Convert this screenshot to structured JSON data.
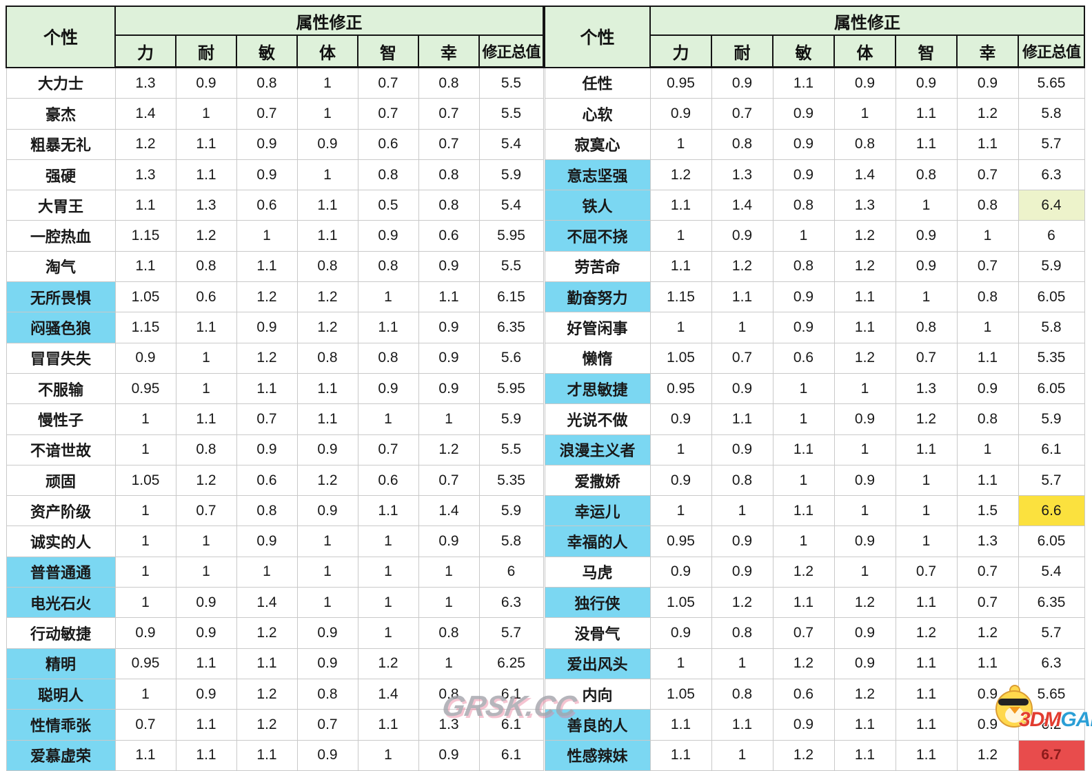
{
  "header": {
    "personality_label": "个性",
    "modifier_label": "属性修正",
    "columns": [
      "力",
      "耐",
      "敏",
      "体",
      "智",
      "幸"
    ],
    "total_label": "修正总值"
  },
  "chart_data": [
    {
      "type": "table",
      "title": "属性修正 (左表)",
      "rows": [
        {
          "name": "大力士",
          "highlight": false,
          "values": [
            "1.3",
            "0.9",
            "0.8",
            "1",
            "0.7",
            "0.8"
          ],
          "total": "5.5",
          "total_highlight": ""
        },
        {
          "name": "豪杰",
          "highlight": false,
          "values": [
            "1.4",
            "1",
            "0.7",
            "1",
            "0.7",
            "0.7"
          ],
          "total": "5.5",
          "total_highlight": ""
        },
        {
          "name": "粗暴无礼",
          "highlight": false,
          "values": [
            "1.2",
            "1.1",
            "0.9",
            "0.9",
            "0.6",
            "0.7"
          ],
          "total": "5.4",
          "total_highlight": ""
        },
        {
          "name": "强硬",
          "highlight": false,
          "values": [
            "1.3",
            "1.1",
            "0.9",
            "1",
            "0.8",
            "0.8"
          ],
          "total": "5.9",
          "total_highlight": ""
        },
        {
          "name": "大胃王",
          "highlight": false,
          "values": [
            "1.1",
            "1.3",
            "0.6",
            "1.1",
            "0.5",
            "0.8"
          ],
          "total": "5.4",
          "total_highlight": ""
        },
        {
          "name": "一腔热血",
          "highlight": false,
          "values": [
            "1.15",
            "1.2",
            "1",
            "1.1",
            "0.9",
            "0.6"
          ],
          "total": "5.95",
          "total_highlight": ""
        },
        {
          "name": "淘气",
          "highlight": false,
          "values": [
            "1.1",
            "0.8",
            "1.1",
            "0.8",
            "0.8",
            "0.9"
          ],
          "total": "5.5",
          "total_highlight": ""
        },
        {
          "name": "无所畏惧",
          "highlight": true,
          "values": [
            "1.05",
            "0.6",
            "1.2",
            "1.2",
            "1",
            "1.1"
          ],
          "total": "6.15",
          "total_highlight": ""
        },
        {
          "name": "闷骚色狼",
          "highlight": true,
          "values": [
            "1.15",
            "1.1",
            "0.9",
            "1.2",
            "1.1",
            "0.9"
          ],
          "total": "6.35",
          "total_highlight": ""
        },
        {
          "name": "冒冒失失",
          "highlight": false,
          "values": [
            "0.9",
            "1",
            "1.2",
            "0.8",
            "0.8",
            "0.9"
          ],
          "total": "5.6",
          "total_highlight": ""
        },
        {
          "name": "不服输",
          "highlight": false,
          "values": [
            "0.95",
            "1",
            "1.1",
            "1.1",
            "0.9",
            "0.9"
          ],
          "total": "5.95",
          "total_highlight": ""
        },
        {
          "name": "慢性子",
          "highlight": false,
          "values": [
            "1",
            "1.1",
            "0.7",
            "1.1",
            "1",
            "1"
          ],
          "total": "5.9",
          "total_highlight": ""
        },
        {
          "name": "不谙世故",
          "highlight": false,
          "values": [
            "1",
            "0.8",
            "0.9",
            "0.9",
            "0.7",
            "1.2"
          ],
          "total": "5.5",
          "total_highlight": ""
        },
        {
          "name": "顽固",
          "highlight": false,
          "values": [
            "1.05",
            "1.2",
            "0.6",
            "1.2",
            "0.6",
            "0.7"
          ],
          "total": "5.35",
          "total_highlight": ""
        },
        {
          "name": "资产阶级",
          "highlight": false,
          "values": [
            "1",
            "0.7",
            "0.8",
            "0.9",
            "1.1",
            "1.4"
          ],
          "total": "5.9",
          "total_highlight": ""
        },
        {
          "name": "诚实的人",
          "highlight": false,
          "values": [
            "1",
            "1",
            "0.9",
            "1",
            "1",
            "0.9"
          ],
          "total": "5.8",
          "total_highlight": ""
        },
        {
          "name": "普普通通",
          "highlight": true,
          "values": [
            "1",
            "1",
            "1",
            "1",
            "1",
            "1"
          ],
          "total": "6",
          "total_highlight": ""
        },
        {
          "name": "电光石火",
          "highlight": true,
          "values": [
            "1",
            "0.9",
            "1.4",
            "1",
            "1",
            "1"
          ],
          "total": "6.3",
          "total_highlight": ""
        },
        {
          "name": "行动敏捷",
          "highlight": false,
          "values": [
            "0.9",
            "0.9",
            "1.2",
            "0.9",
            "1",
            "0.8"
          ],
          "total": "5.7",
          "total_highlight": ""
        },
        {
          "name": "精明",
          "highlight": true,
          "values": [
            "0.95",
            "1.1",
            "1.1",
            "0.9",
            "1.2",
            "1"
          ],
          "total": "6.25",
          "total_highlight": ""
        },
        {
          "name": "聪明人",
          "highlight": true,
          "values": [
            "1",
            "0.9",
            "1.2",
            "0.8",
            "1.4",
            "0.8"
          ],
          "total": "6.1",
          "total_highlight": ""
        },
        {
          "name": "性情乖张",
          "highlight": true,
          "values": [
            "0.7",
            "1.1",
            "1.2",
            "0.7",
            "1.1",
            "1.3"
          ],
          "total": "6.1",
          "total_highlight": ""
        },
        {
          "name": "爱慕虚荣",
          "highlight": true,
          "values": [
            "1.1",
            "1.1",
            "1.1",
            "0.9",
            "1",
            "0.9"
          ],
          "total": "6.1",
          "total_highlight": ""
        }
      ]
    },
    {
      "type": "table",
      "title": "属性修正 (右表)",
      "rows": [
        {
          "name": "任性",
          "highlight": false,
          "values": [
            "0.95",
            "0.9",
            "1.1",
            "0.9",
            "0.9",
            "0.9"
          ],
          "total": "5.65",
          "total_highlight": ""
        },
        {
          "name": "心软",
          "highlight": false,
          "values": [
            "0.9",
            "0.7",
            "0.9",
            "1",
            "1.1",
            "1.2"
          ],
          "total": "5.8",
          "total_highlight": ""
        },
        {
          "name": "寂寞心",
          "highlight": false,
          "values": [
            "1",
            "0.8",
            "0.9",
            "0.8",
            "1.1",
            "1.1"
          ],
          "total": "5.7",
          "total_highlight": ""
        },
        {
          "name": "意志坚强",
          "highlight": true,
          "values": [
            "1.2",
            "1.3",
            "0.9",
            "1.4",
            "0.8",
            "0.7"
          ],
          "total": "6.3",
          "total_highlight": ""
        },
        {
          "name": "铁人",
          "highlight": true,
          "values": [
            "1.1",
            "1.4",
            "0.8",
            "1.3",
            "1",
            "0.8"
          ],
          "total": "6.4",
          "total_highlight": "lightgreen"
        },
        {
          "name": "不屈不挠",
          "highlight": true,
          "values": [
            "1",
            "0.9",
            "1",
            "1.2",
            "0.9",
            "1"
          ],
          "total": "6",
          "total_highlight": ""
        },
        {
          "name": "劳苦命",
          "highlight": false,
          "values": [
            "1.1",
            "1.2",
            "0.8",
            "1.2",
            "0.9",
            "0.7"
          ],
          "total": "5.9",
          "total_highlight": ""
        },
        {
          "name": "勤奋努力",
          "highlight": true,
          "values": [
            "1.15",
            "1.1",
            "0.9",
            "1.1",
            "1",
            "0.8"
          ],
          "total": "6.05",
          "total_highlight": ""
        },
        {
          "name": "好管闲事",
          "highlight": false,
          "values": [
            "1",
            "1",
            "0.9",
            "1.1",
            "0.8",
            "1"
          ],
          "total": "5.8",
          "total_highlight": ""
        },
        {
          "name": "懒惰",
          "highlight": false,
          "values": [
            "1.05",
            "0.7",
            "0.6",
            "1.2",
            "0.7",
            "1.1"
          ],
          "total": "5.35",
          "total_highlight": ""
        },
        {
          "name": "才思敏捷",
          "highlight": true,
          "values": [
            "0.95",
            "0.9",
            "1",
            "1",
            "1.3",
            "0.9"
          ],
          "total": "6.05",
          "total_highlight": ""
        },
        {
          "name": "光说不做",
          "highlight": false,
          "values": [
            "0.9",
            "1.1",
            "1",
            "0.9",
            "1.2",
            "0.8"
          ],
          "total": "5.9",
          "total_highlight": ""
        },
        {
          "name": "浪漫主义者",
          "highlight": true,
          "values": [
            "1",
            "0.9",
            "1.1",
            "1",
            "1.1",
            "1"
          ],
          "total": "6.1",
          "total_highlight": ""
        },
        {
          "name": "爱撒娇",
          "highlight": false,
          "values": [
            "0.9",
            "0.8",
            "1",
            "0.9",
            "1",
            "1.1"
          ],
          "total": "5.7",
          "total_highlight": ""
        },
        {
          "name": "幸运儿",
          "highlight": true,
          "values": [
            "1",
            "1",
            "1.1",
            "1",
            "1",
            "1.5"
          ],
          "total": "6.6",
          "total_highlight": "yellow"
        },
        {
          "name": "幸福的人",
          "highlight": true,
          "values": [
            "0.95",
            "0.9",
            "1",
            "0.9",
            "1",
            "1.3"
          ],
          "total": "6.05",
          "total_highlight": ""
        },
        {
          "name": "马虎",
          "highlight": false,
          "values": [
            "0.9",
            "0.9",
            "1.2",
            "1",
            "0.7",
            "0.7"
          ],
          "total": "5.4",
          "total_highlight": ""
        },
        {
          "name": "独行侠",
          "highlight": true,
          "values": [
            "1.05",
            "1.2",
            "1.1",
            "1.2",
            "1.1",
            "0.7"
          ],
          "total": "6.35",
          "total_highlight": ""
        },
        {
          "name": "没骨气",
          "highlight": false,
          "values": [
            "0.9",
            "0.8",
            "0.7",
            "0.9",
            "1.2",
            "1.2"
          ],
          "total": "5.7",
          "total_highlight": ""
        },
        {
          "name": "爱出风头",
          "highlight": true,
          "values": [
            "1",
            "1",
            "1.2",
            "0.9",
            "1.1",
            "1.1"
          ],
          "total": "6.3",
          "total_highlight": ""
        },
        {
          "name": "内向",
          "highlight": false,
          "values": [
            "1.05",
            "0.8",
            "0.6",
            "1.2",
            "1.1",
            "0.9"
          ],
          "total": "5.65",
          "total_highlight": ""
        },
        {
          "name": "善良的人",
          "highlight": true,
          "values": [
            "1.1",
            "1.1",
            "0.9",
            "1.1",
            "1.1",
            "0.9"
          ],
          "total": "6.2",
          "total_highlight": ""
        },
        {
          "name": "性感辣妹",
          "highlight": true,
          "values": [
            "1.1",
            "1",
            "1.2",
            "1.1",
            "1.1",
            "1.2"
          ],
          "total": "6.7",
          "total_highlight": "red"
        }
      ]
    }
  ],
  "watermarks": {
    "center_text": "GRSK.CC",
    "logo_3dm": "3DM",
    "logo_game": "GAME"
  },
  "colors": {
    "header_bg": "#def1da",
    "header_border": "#141414",
    "grid": "#c9c9c9",
    "row_highlight": "#7bd7f2",
    "total_lightgreen": "#edf3cb",
    "total_yellow": "#fbe13e",
    "total_red": "#e84c4c",
    "total_red_text": "#8c1b1b"
  }
}
